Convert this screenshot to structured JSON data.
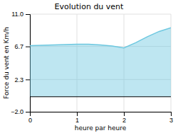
{
  "chart_data": {
    "type": "area",
    "title": "Evolution du vent",
    "x_label": "heure par heure",
    "y_label": "Force du vent en Km/h",
    "x": [
      0,
      0.25,
      0.5,
      0.75,
      1.0,
      1.25,
      1.5,
      1.75,
      2.0,
      2.25,
      2.5,
      2.75,
      3.0
    ],
    "values": [
      6.8,
      6.85,
      6.9,
      6.95,
      7.0,
      7.0,
      6.9,
      6.75,
      6.5,
      7.2,
      8.0,
      8.7,
      9.2
    ],
    "color": "#6ec8e0",
    "xlim": [
      0,
      3
    ],
    "xticks": [
      0,
      1,
      2,
      3
    ],
    "ylim": [
      -2.0,
      11.0
    ],
    "yticks": [
      {
        "value": -2.0,
        "label": "−2.0"
      },
      2.3,
      6.7,
      {
        "value": 11.0,
        "label": "11.0"
      }
    ],
    "grid": true
  }
}
